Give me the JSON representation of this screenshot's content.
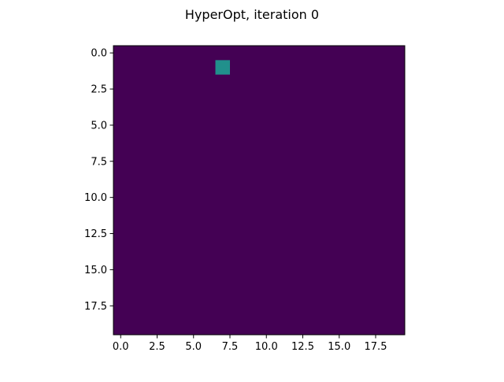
{
  "chart_data": {
    "type": "heatmap",
    "title": "HyperOpt, iteration 0",
    "grid": false,
    "rows": 20,
    "cols": 20,
    "default_value": 0,
    "cells": [
      {
        "row": 1,
        "col": 7,
        "value": 1
      }
    ],
    "colormap": {
      "low": "#440154",
      "high": "#21908c"
    },
    "xlim": [
      -0.5,
      19.5
    ],
    "ylim": [
      19.5,
      -0.5
    ],
    "x_ticks": [
      {
        "value": 0.0,
        "label": "0.0"
      },
      {
        "value": 2.5,
        "label": "2.5"
      },
      {
        "value": 5.0,
        "label": "5.0"
      },
      {
        "value": 7.5,
        "label": "7.5"
      },
      {
        "value": 10.0,
        "label": "10.0"
      },
      {
        "value": 12.5,
        "label": "12.5"
      },
      {
        "value": 15.0,
        "label": "15.0"
      },
      {
        "value": 17.5,
        "label": "17.5"
      }
    ],
    "y_ticks": [
      {
        "value": 0.0,
        "label": "0.0"
      },
      {
        "value": 2.5,
        "label": "2.5"
      },
      {
        "value": 5.0,
        "label": "5.0"
      },
      {
        "value": 7.5,
        "label": "7.5"
      },
      {
        "value": 10.0,
        "label": "10.0"
      },
      {
        "value": 12.5,
        "label": "12.5"
      },
      {
        "value": 15.0,
        "label": "15.0"
      },
      {
        "value": 17.5,
        "label": "17.5"
      }
    ]
  }
}
